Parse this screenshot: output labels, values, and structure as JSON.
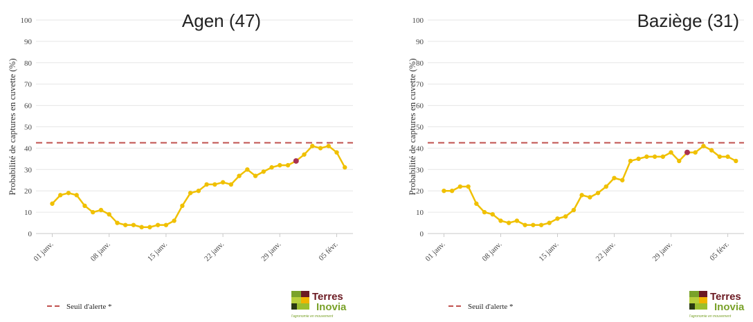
{
  "chart_data": [
    {
      "type": "line",
      "title": "Agen (47)",
      "ylabel": "Probabilité de captures en cuvette (%)",
      "ylim": [
        0,
        100
      ],
      "yticks": [
        0,
        10,
        20,
        30,
        40,
        50,
        60,
        70,
        80,
        90,
        100
      ],
      "xticks": [
        {
          "x": 1,
          "label": "01 janv."
        },
        {
          "x": 8,
          "label": "08 janv."
        },
        {
          "x": 15,
          "label": "15 janv."
        },
        {
          "x": 22,
          "label": "22 janv."
        },
        {
          "x": 29,
          "label": "29 janv."
        },
        {
          "x": 36,
          "label": "05 févr."
        }
      ],
      "xlim": [
        -1,
        38
      ],
      "threshold": {
        "value": 42.5,
        "color": "#c0504d"
      },
      "series": [
        {
          "color": "#f0c000",
          "x": [
            1,
            2,
            3,
            4,
            5,
            6,
            7,
            8,
            9,
            10,
            11,
            12,
            13,
            14,
            15,
            16,
            17,
            18,
            19,
            20,
            21,
            22,
            23,
            24,
            25,
            26,
            27,
            28,
            29,
            30,
            31,
            32,
            33,
            34,
            35,
            36,
            37
          ],
          "values": [
            14,
            18,
            19,
            18,
            13,
            10,
            11,
            9,
            5,
            4,
            4,
            3,
            3,
            4,
            4,
            6,
            13,
            19,
            20,
            23,
            23,
            24,
            23,
            27,
            30,
            27,
            29,
            31,
            32,
            32,
            34,
            37,
            41,
            40,
            41,
            38,
            31
          ]
        }
      ],
      "highlight": {
        "x": 31,
        "y": 34,
        "color": "#a83250"
      },
      "grid": "horizontal",
      "legend": "bottom-left"
    },
    {
      "type": "line",
      "title": "Baziège (31)",
      "ylabel": "Probabilité de captures en cuvette (%)",
      "ylim": [
        0,
        100
      ],
      "yticks": [
        0,
        10,
        20,
        30,
        40,
        50,
        60,
        70,
        80,
        90,
        100
      ],
      "xticks": [
        {
          "x": 1,
          "label": "01 janv."
        },
        {
          "x": 8,
          "label": "08 janv."
        },
        {
          "x": 15,
          "label": "15 janv."
        },
        {
          "x": 22,
          "label": "22 janv."
        },
        {
          "x": 29,
          "label": "29 janv."
        },
        {
          "x": 36,
          "label": "05 févr."
        }
      ],
      "xlim": [
        -1,
        38
      ],
      "threshold": {
        "value": 42.5,
        "color": "#c0504d"
      },
      "series": [
        {
          "color": "#f0c000",
          "x": [
            1,
            2,
            3,
            4,
            5,
            6,
            7,
            8,
            9,
            10,
            11,
            12,
            13,
            14,
            15,
            16,
            17,
            18,
            19,
            20,
            21,
            22,
            23,
            24,
            25,
            26,
            27,
            28,
            29,
            30,
            31,
            32,
            33,
            34,
            35,
            36,
            37
          ],
          "values": [
            20,
            20,
            22,
            22,
            14,
            10,
            9,
            6,
            5,
            6,
            4,
            4,
            4,
            5,
            7,
            8,
            11,
            18,
            17,
            19,
            22,
            26,
            25,
            34,
            35,
            36,
            36,
            36,
            38,
            34,
            38,
            38,
            41,
            39,
            36,
            36,
            34
          ]
        }
      ],
      "highlight": {
        "x": 31,
        "y": 38,
        "color": "#a83250"
      },
      "grid": "horizontal",
      "legend": "bottom-left"
    }
  ],
  "legend": {
    "label": "Seuil d'alerte *"
  },
  "logo": {
    "line1": "Terres",
    "line2": "Inovia",
    "tagline": "l'agronomie en mouvement"
  }
}
